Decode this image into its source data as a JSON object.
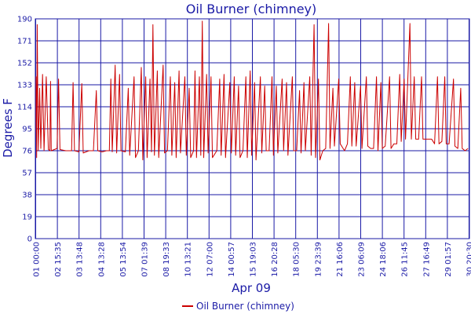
{
  "chart_data": {
    "type": "line",
    "title": "Oil Burner (chimney)",
    "xlabel": "Apr 09",
    "ylabel": "Degrees F",
    "ylim": [
      0,
      190
    ],
    "yticks": [
      0,
      19,
      38,
      57,
      76,
      95,
      114,
      133,
      152,
      171,
      190
    ],
    "xticks": [
      "01 00:00",
      "02 15:35",
      "03 13:48",
      "04 13:28",
      "05 13:54",
      "07 01:39",
      "08 19:33",
      "10 13:21",
      "12 07:00",
      "14 00:57",
      "15 19:03",
      "16 20:28",
      "18 05:30",
      "19 23:39",
      "21 16:06",
      "23 06:09",
      "24 18:06",
      "26 11:45",
      "27 16:49",
      "29 01:57",
      "30 20:30"
    ],
    "grid": true,
    "legend_position": "bottom-center",
    "colors": {
      "series": "#cc0000",
      "grid": "#1a1aa6",
      "text": "#1a1aa6"
    },
    "series": [
      {
        "name": "Oil Burner (chimney)",
        "baseline": 76,
        "points": [
          [
            0.0,
            76
          ],
          [
            0.05,
            140
          ],
          [
            0.09,
            70
          ],
          [
            0.13,
            185
          ],
          [
            0.2,
            76
          ],
          [
            0.3,
            130
          ],
          [
            0.38,
            78
          ],
          [
            0.5,
            142
          ],
          [
            0.6,
            76
          ],
          [
            0.75,
            140
          ],
          [
            0.9,
            77
          ],
          [
            1.0,
            76
          ],
          [
            1.05,
            136
          ],
          [
            1.1,
            76
          ],
          [
            1.5,
            78
          ],
          [
            1.6,
            138
          ],
          [
            1.7,
            77
          ],
          [
            2.1,
            76
          ],
          [
            2.5,
            76
          ],
          [
            2.6,
            135
          ],
          [
            2.7,
            76
          ],
          [
            3.0,
            75
          ],
          [
            3.2,
            134
          ],
          [
            3.3,
            74
          ],
          [
            3.7,
            76
          ],
          [
            4.0,
            76
          ],
          [
            4.2,
            128
          ],
          [
            4.3,
            76
          ],
          [
            4.6,
            75
          ],
          [
            4.9,
            76
          ],
          [
            5.1,
            76
          ],
          [
            5.2,
            138
          ],
          [
            5.3,
            75
          ],
          [
            5.5,
            150
          ],
          [
            5.6,
            74
          ],
          [
            5.8,
            142
          ],
          [
            5.9,
            76
          ],
          [
            6.2,
            75
          ],
          [
            6.4,
            130
          ],
          [
            6.5,
            72
          ],
          [
            6.8,
            140
          ],
          [
            6.9,
            70
          ],
          [
            7.1,
            76
          ],
          [
            7.3,
            148
          ],
          [
            7.4,
            68
          ],
          [
            7.6,
            140
          ],
          [
            7.7,
            70
          ],
          [
            7.9,
            138
          ],
          [
            8.0,
            75
          ],
          [
            8.1,
            185
          ],
          [
            8.2,
            72
          ],
          [
            8.4,
            145
          ],
          [
            8.5,
            70
          ],
          [
            8.8,
            150
          ],
          [
            8.9,
            74
          ],
          [
            9.1,
            76
          ],
          [
            9.3,
            140
          ],
          [
            9.4,
            72
          ],
          [
            9.6,
            135
          ],
          [
            9.7,
            70
          ],
          [
            9.9,
            145
          ],
          [
            10.0,
            74
          ],
          [
            10.3,
            140
          ],
          [
            10.4,
            72
          ],
          [
            10.6,
            130
          ],
          [
            10.7,
            70
          ],
          [
            10.9,
            76
          ],
          [
            11.0,
            145
          ],
          [
            11.1,
            70
          ],
          [
            11.3,
            140
          ],
          [
            11.4,
            72
          ],
          [
            11.5,
            188
          ],
          [
            11.6,
            70
          ],
          [
            11.8,
            142
          ],
          [
            11.9,
            74
          ],
          [
            12.1,
            140
          ],
          [
            12.2,
            70
          ],
          [
            12.5,
            76
          ],
          [
            12.7,
            138
          ],
          [
            12.8,
            72
          ],
          [
            13.0,
            142
          ],
          [
            13.1,
            70
          ],
          [
            13.4,
            135
          ],
          [
            13.5,
            74
          ],
          [
            13.7,
            140
          ],
          [
            13.8,
            72
          ],
          [
            14.0,
            132
          ],
          [
            14.1,
            70
          ],
          [
            14.3,
            76
          ],
          [
            14.5,
            140
          ],
          [
            14.6,
            70
          ],
          [
            14.8,
            145
          ],
          [
            14.9,
            72
          ],
          [
            15.1,
            135
          ],
          [
            15.2,
            68
          ],
          [
            15.5,
            140
          ],
          [
            15.6,
            74
          ],
          [
            15.8,
            132
          ],
          [
            15.9,
            76
          ],
          [
            16.1,
            76
          ],
          [
            16.3,
            140
          ],
          [
            16.4,
            72
          ],
          [
            16.6,
            132
          ],
          [
            16.7,
            74
          ],
          [
            17.0,
            138
          ],
          [
            17.1,
            76
          ],
          [
            17.3,
            135
          ],
          [
            17.4,
            72
          ],
          [
            17.7,
            140
          ],
          [
            17.8,
            76
          ],
          [
            18.0,
            76
          ],
          [
            18.2,
            128
          ],
          [
            18.3,
            74
          ],
          [
            18.5,
            135
          ],
          [
            18.6,
            76
          ],
          [
            18.9,
            140
          ],
          [
            19.0,
            72
          ],
          [
            19.2,
            185
          ],
          [
            19.3,
            70
          ],
          [
            19.5,
            138
          ],
          [
            19.6,
            68
          ],
          [
            19.8,
            76
          ],
          [
            20.0,
            78
          ],
          [
            20.2,
            186
          ],
          [
            20.3,
            78
          ],
          [
            20.5,
            130
          ],
          [
            20.6,
            80
          ],
          [
            20.9,
            138
          ],
          [
            21.0,
            82
          ],
          [
            21.3,
            76
          ],
          [
            21.5,
            82
          ],
          [
            21.7,
            140
          ],
          [
            21.8,
            80
          ],
          [
            22.0,
            135
          ],
          [
            22.1,
            80
          ],
          [
            22.4,
            132
          ],
          [
            22.5,
            78
          ],
          [
            22.8,
            140
          ],
          [
            22.9,
            80
          ],
          [
            23.1,
            78
          ],
          [
            23.3,
            78
          ],
          [
            23.5,
            140
          ],
          [
            23.6,
            76
          ],
          [
            23.8,
            135
          ],
          [
            23.9,
            78
          ],
          [
            24.1,
            80
          ],
          [
            24.4,
            140
          ],
          [
            24.5,
            78
          ],
          [
            24.7,
            82
          ],
          [
            24.9,
            82
          ],
          [
            25.1,
            142
          ],
          [
            25.2,
            84
          ],
          [
            25.4,
            138
          ],
          [
            25.5,
            86
          ],
          [
            25.8,
            186
          ],
          [
            25.9,
            86
          ],
          [
            26.1,
            140
          ],
          [
            26.2,
            86
          ],
          [
            26.4,
            86
          ],
          [
            26.6,
            140
          ],
          [
            26.7,
            86
          ],
          [
            26.9,
            86
          ],
          [
            27.3,
            86
          ],
          [
            27.5,
            82
          ],
          [
            27.7,
            140
          ],
          [
            27.8,
            82
          ],
          [
            28.0,
            84
          ],
          [
            28.2,
            140
          ],
          [
            28.3,
            82
          ],
          [
            28.5,
            82
          ],
          [
            28.8,
            138
          ],
          [
            28.9,
            80
          ],
          [
            29.1,
            78
          ],
          [
            29.3,
            130
          ],
          [
            29.4,
            78
          ],
          [
            29.6,
            76
          ],
          [
            29.8,
            78
          ]
        ]
      }
    ]
  }
}
